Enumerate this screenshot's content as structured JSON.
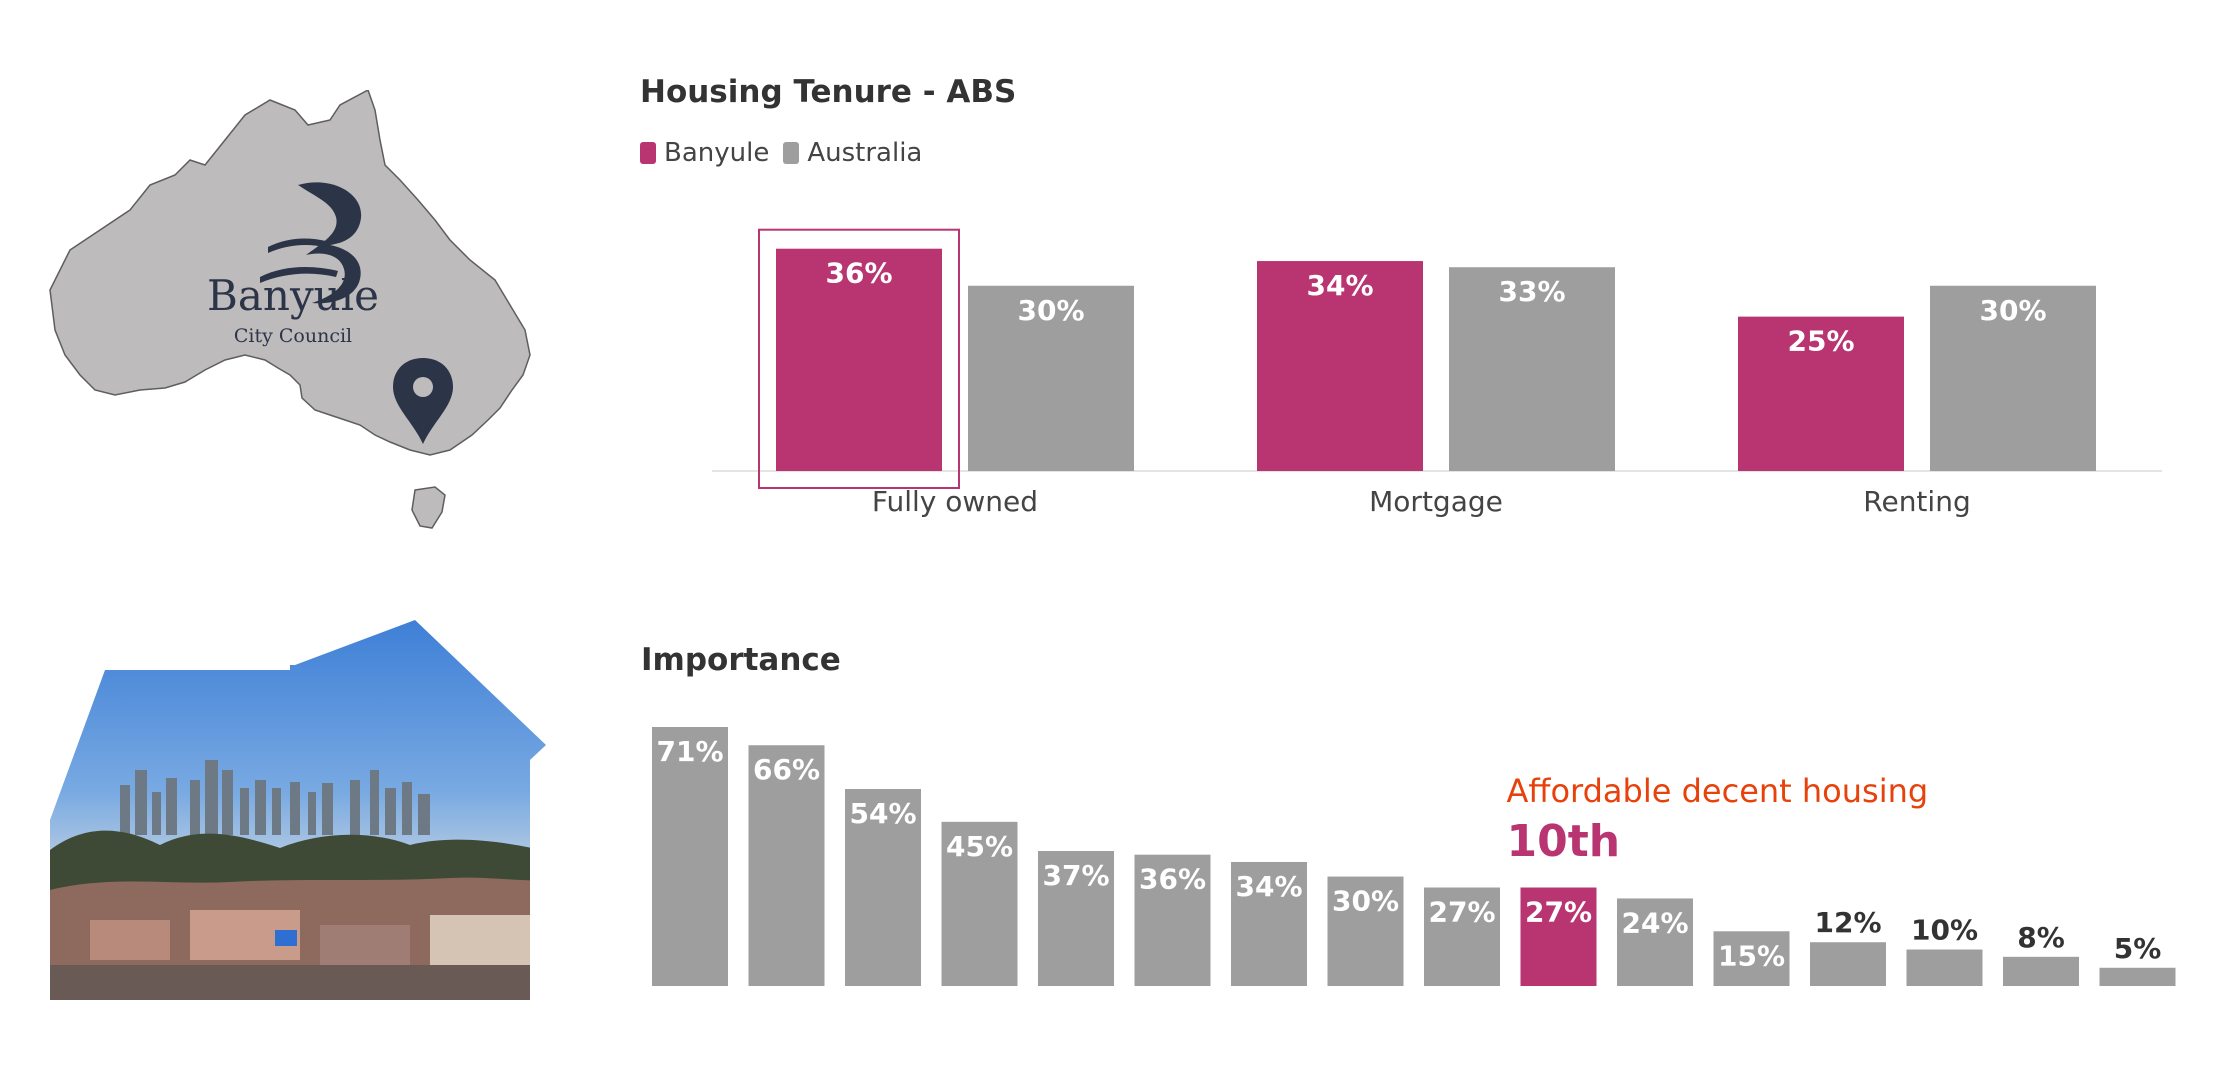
{
  "colors": {
    "banyule": "#b83572",
    "australia": "#9e9e9e",
    "highlight_text": "#e8420c",
    "rank_text": "#b83572",
    "map_fill": "#bdbbbc",
    "map_stroke": "#5e5e5e",
    "logo": "#2c3447"
  },
  "logo": {
    "name": "Banyule",
    "subtitle": "City Council"
  },
  "icons": {
    "location": "map-pin-icon"
  },
  "chart_data": [
    {
      "type": "bar",
      "title": "Housing Tenure - ABS",
      "categories": [
        "Fully owned",
        "Mortgage",
        "Renting"
      ],
      "series": [
        {
          "name": "Banyule",
          "values": [
            36,
            34,
            25
          ],
          "labels": [
            "36%",
            "34%",
            "25%"
          ]
        },
        {
          "name": "Australia",
          "values": [
            30,
            33,
            30
          ],
          "labels": [
            "30%",
            "33%",
            "30%"
          ]
        }
      ],
      "ylim": [
        0,
        40
      ],
      "legend": "top-left",
      "highlighted": {
        "series": "Banyule",
        "category": "Fully owned"
      }
    },
    {
      "type": "bar",
      "title": "Importance",
      "values": [
        71,
        66,
        54,
        45,
        37,
        36,
        34,
        30,
        27,
        27,
        24,
        15,
        12,
        10,
        8,
        5
      ],
      "labels": [
        "71%",
        "66%",
        "54%",
        "45%",
        "37%",
        "36%",
        "34%",
        "30%",
        "27%",
        "27%",
        "24%",
        "15%",
        "12%",
        "10%",
        "8%",
        "5%"
      ],
      "ylim": [
        0,
        71
      ],
      "highlight_index": 9,
      "annotation": {
        "text": "Affordable decent housing",
        "rank": "10th"
      }
    }
  ]
}
